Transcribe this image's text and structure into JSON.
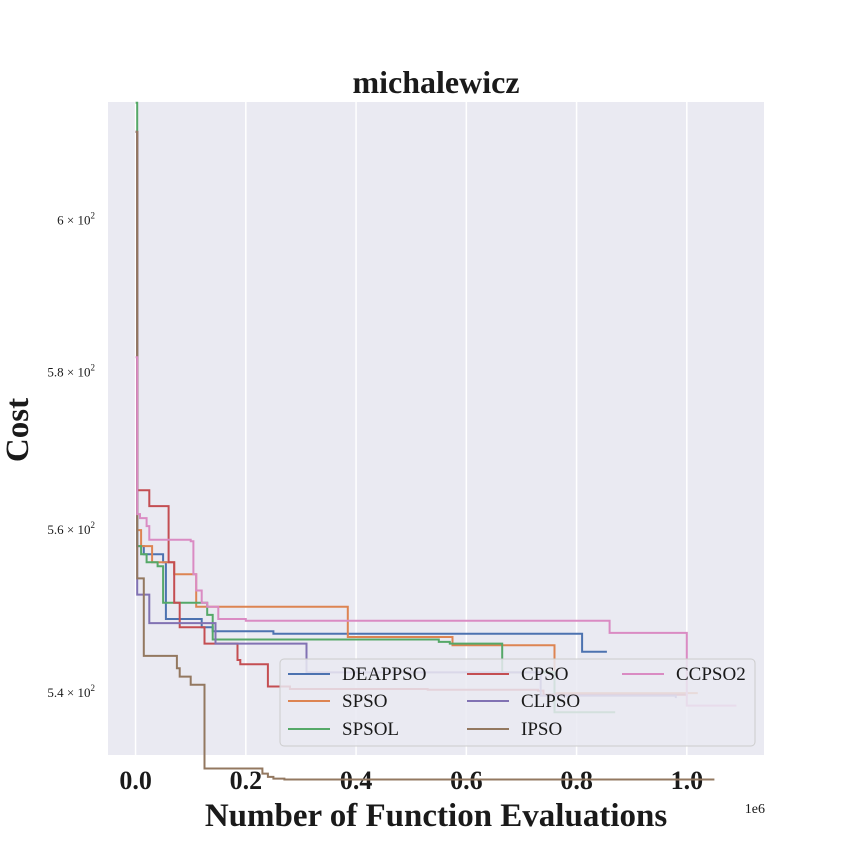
{
  "chart_data": {
    "type": "line",
    "title": "michalewicz",
    "xlabel": "Number of Function Evaluations",
    "ylabel": "Cost",
    "x_multiplier_label": "1e6",
    "xlim": [
      -0.05,
      1.14
    ],
    "ylim_log": [
      532.6,
      616.1
    ],
    "y_scale": "log",
    "grid": true,
    "legend_location": "lower right",
    "legend_columns": 3,
    "x_ticks": [
      {
        "value": 0.0,
        "label": "0.0"
      },
      {
        "value": 0.2,
        "label": "0.2"
      },
      {
        "value": 0.4,
        "label": "0.4"
      },
      {
        "value": 0.6,
        "label": "0.6"
      },
      {
        "value": 0.8,
        "label": "0.8"
      },
      {
        "value": 1.0,
        "label": "1.0"
      }
    ],
    "y_ticks": [
      {
        "value": 540,
        "base": "5.4",
        "exp": "2"
      },
      {
        "value": 560,
        "base": "5.6",
        "exp": "2"
      },
      {
        "value": 580,
        "base": "5.8",
        "exp": "2"
      },
      {
        "value": 600,
        "base": "6",
        "exp": "2"
      }
    ],
    "series": [
      {
        "name": "DEAPPSO",
        "color": "#4c72b0",
        "x": [
          0,
          0.003,
          0.015,
          0.03,
          0.05,
          0.055,
          0.1,
          0.12,
          0.14,
          0.2,
          0.25,
          0.8,
          0.81,
          0.855
        ],
        "y": [
          612,
          558,
          557,
          557,
          556,
          549,
          549,
          548,
          547.5,
          547.5,
          547.2,
          547.2,
          545,
          545
        ]
      },
      {
        "name": "SPSO",
        "color": "#dd8452",
        "x": [
          0,
          0.003,
          0.01,
          0.03,
          0.06,
          0.07,
          0.1,
          0.11,
          0.38,
          0.385,
          0.57,
          0.575,
          0.74,
          0.76,
          0.8,
          1.02
        ],
        "y": [
          612,
          560,
          558,
          556,
          556,
          554.5,
          554.5,
          550.5,
          550.5,
          546.8,
          546.8,
          545.8,
          545.8,
          540,
          540,
          540
        ]
      },
      {
        "name": "SPSOL",
        "color": "#55a868",
        "x": [
          0,
          0.003,
          0.01,
          0.02,
          0.04,
          0.05,
          0.1,
          0.13,
          0.14,
          0.4,
          0.55,
          0.57,
          0.66,
          0.665,
          0.74,
          0.76,
          0.87
        ],
        "y": [
          616,
          558,
          557,
          556,
          555.5,
          551,
          551,
          549.5,
          546.5,
          546.5,
          546.2,
          546,
          546,
          542.5,
          542.5,
          537.7,
          537.7
        ]
      },
      {
        "name": "CPSO",
        "color": "#c44e52",
        "x": [
          0,
          0.003,
          0.02,
          0.025,
          0.055,
          0.06,
          0.07,
          0.08,
          0.12,
          0.125,
          0.18,
          0.185,
          0.19,
          0.235,
          0.24,
          0.28,
          0.53,
          0.73,
          0.74,
          1.0
        ],
        "y": [
          612,
          565,
          565,
          563,
          563,
          556,
          551,
          548,
          548,
          546,
          546,
          544,
          543.5,
          543.5,
          540.8,
          540.5,
          540.4,
          540.3,
          539.8,
          539.8
        ]
      },
      {
        "name": "CLPSO",
        "color": "#8172b3",
        "x": [
          0,
          0.003,
          0.02,
          0.025,
          0.14,
          0.145,
          0.3,
          0.31,
          0.73,
          0.735,
          0.98
        ],
        "y": [
          612,
          552,
          552,
          548.5,
          548.5,
          546,
          546,
          542.5,
          542.5,
          539.7,
          539.4
        ]
      },
      {
        "name": "IPSO",
        "color": "#937860",
        "x": [
          0,
          0.003,
          0.01,
          0.015,
          0.07,
          0.075,
          0.08,
          0.09,
          0.1,
          0.115,
          0.125,
          0.22,
          0.23,
          0.24,
          0.25,
          0.27,
          1.05
        ],
        "y": [
          612,
          554,
          554,
          544.5,
          544.5,
          543,
          542,
          542,
          541,
          541,
          531,
          531,
          530.4,
          530,
          529.8,
          529.7,
          529.7
        ]
      },
      {
        "name": "CCPSO2",
        "color": "#da8bc3",
        "x": [
          0,
          0.003,
          0.008,
          0.02,
          0.025,
          0.04,
          0.1,
          0.105,
          0.11,
          0.12,
          0.13,
          0.15,
          0.2,
          0.85,
          0.86,
          0.98,
          1.0,
          1.09
        ],
        "y": [
          582,
          562,
          561.5,
          560.5,
          558.8,
          558.8,
          558.6,
          554.5,
          552.5,
          551,
          550.5,
          549,
          548.8,
          548.8,
          547.3,
          547.3,
          538.5,
          538.5
        ]
      }
    ]
  }
}
